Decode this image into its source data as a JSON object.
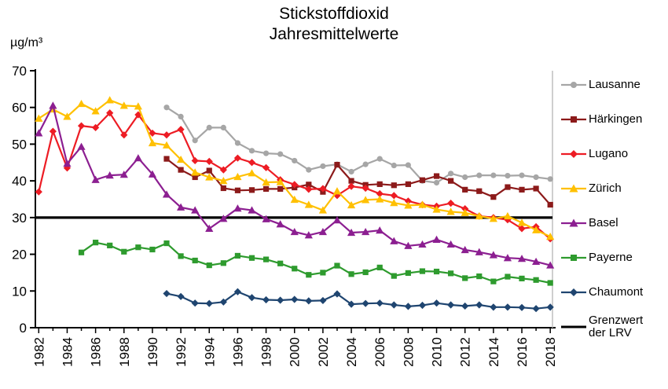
{
  "title": {
    "line1": "Stickstoffdioxid",
    "line2": "Jahresmittelwerte"
  },
  "y_axis": {
    "unit_label": "µg/m³",
    "ticks": [
      0,
      10,
      20,
      30,
      40,
      50,
      60,
      70
    ]
  },
  "x_axis": {
    "tick_labels": [
      "1982",
      "1984",
      "1986",
      "1988",
      "1990",
      "1992",
      "1994",
      "1996",
      "1998",
      "2000",
      "2002",
      "2004",
      "2006",
      "2008",
      "2010",
      "2012",
      "2014",
      "2016",
      "2018"
    ]
  },
  "chart_data": {
    "type": "line",
    "title": "Stickstoffdioxid Jahresmittelwerte",
    "ylabel": "µg/m³",
    "ylim": [
      0,
      70
    ],
    "grid": false,
    "legend_position": "right",
    "x": [
      1982,
      1983,
      1984,
      1985,
      1986,
      1987,
      1988,
      1989,
      1990,
      1991,
      1992,
      1993,
      1994,
      1995,
      1996,
      1997,
      1998,
      1999,
      2000,
      2001,
      2002,
      2003,
      2004,
      2005,
      2006,
      2007,
      2008,
      2009,
      2010,
      2011,
      2012,
      2013,
      2014,
      2015,
      2016,
      2017,
      2018
    ],
    "series": [
      {
        "name": "Lausanne",
        "color": "#a6a6a6",
        "marker": "circle",
        "values": [
          null,
          null,
          null,
          null,
          null,
          null,
          null,
          null,
          null,
          60,
          57.5,
          51,
          54.5,
          54.5,
          50.3,
          48.2,
          47.5,
          47.3,
          45.5,
          43,
          44,
          44.5,
          42.5,
          44.5,
          46,
          44.2,
          44.3,
          40,
          39.5,
          42,
          41,
          41.5,
          41.5,
          41.4,
          41.5,
          41,
          40.5
        ]
      },
      {
        "name": "Härkingen",
        "color": "#8c1a1a",
        "marker": "square",
        "values": [
          null,
          null,
          null,
          null,
          null,
          null,
          null,
          null,
          null,
          46,
          43,
          41,
          42.8,
          38,
          37.4,
          37.5,
          37.8,
          37.8,
          38.2,
          39,
          37,
          44.4,
          40,
          38.9,
          39.1,
          38.8,
          39.1,
          40.2,
          41.3,
          40,
          37.6,
          37.2,
          35.6,
          38.3,
          37.6,
          37.9,
          33.5
        ]
      },
      {
        "name": "Lugano",
        "color": "#ed1c24",
        "marker": "diamond",
        "values": [
          37,
          53.5,
          43.5,
          55,
          54.5,
          58.5,
          52.5,
          58,
          53,
          52.5,
          54,
          45.5,
          45.3,
          43,
          46.2,
          45,
          43.6,
          40.3,
          39,
          37.7,
          37.9,
          36,
          38.5,
          38,
          36.5,
          36,
          34.5,
          33.5,
          33.1,
          33.9,
          32.4,
          30.4,
          30,
          29.4,
          27,
          27.5,
          24.2
        ]
      },
      {
        "name": "Zürich",
        "color": "#ffc000",
        "marker": "triangle",
        "values": [
          57,
          59.5,
          57.5,
          61,
          59,
          62,
          60.5,
          60.3,
          50.3,
          49.7,
          45.8,
          42.3,
          41,
          40,
          41.1,
          42.1,
          39.6,
          39.7,
          34.9,
          33.5,
          32,
          37.2,
          33.4,
          34.8,
          35,
          34,
          33.3,
          33.5,
          32.2,
          31.6,
          31.3,
          30.4,
          29.7,
          30.4,
          28.6,
          26.6,
          24.8
        ]
      },
      {
        "name": "Basel",
        "color": "#8c1f91",
        "marker": "triangle",
        "values": [
          53,
          60.5,
          44.7,
          49.3,
          40.3,
          41.5,
          41.7,
          46.2,
          41.8,
          36.3,
          32.8,
          32,
          27,
          29.7,
          32.5,
          32,
          29.6,
          28.2,
          26.1,
          25.2,
          26.1,
          29.3,
          25.9,
          26.1,
          26.5,
          23.6,
          22.3,
          22.7,
          24,
          22.7,
          21.2,
          20.6,
          19.8,
          19,
          18.8,
          18,
          17
        ]
      },
      {
        "name": "Payerne",
        "color": "#2e9b2e",
        "marker": "square",
        "values": [
          null,
          null,
          null,
          20.5,
          23.2,
          22.4,
          20.7,
          21.9,
          21.3,
          23,
          19.5,
          18.3,
          17,
          17.6,
          19.6,
          19,
          18.6,
          17.5,
          16.1,
          14.4,
          15,
          16.9,
          14.6,
          15.1,
          16.4,
          14.1,
          14.9,
          15.4,
          15.3,
          14.8,
          13.5,
          14,
          12.6,
          13.9,
          13.4,
          13,
          12.2
        ]
      },
      {
        "name": "Chaumont",
        "color": "#1f4570",
        "marker": "diamond",
        "values": [
          null,
          null,
          null,
          null,
          null,
          null,
          null,
          null,
          null,
          9.3,
          8.5,
          6.7,
          6.6,
          7,
          9.8,
          8.2,
          7.6,
          7.5,
          7.7,
          7.3,
          7.4,
          9.2,
          6.4,
          6.6,
          6.7,
          6.2,
          5.8,
          6.1,
          6.7,
          6.2,
          5.9,
          6.2,
          5.6,
          5.6,
          5.5,
          5.2,
          5.6
        ]
      }
    ],
    "lrv": {
      "label_line1": "Grenzwert",
      "label_line2": "der LRV",
      "value": 30,
      "color": "#000000"
    }
  }
}
